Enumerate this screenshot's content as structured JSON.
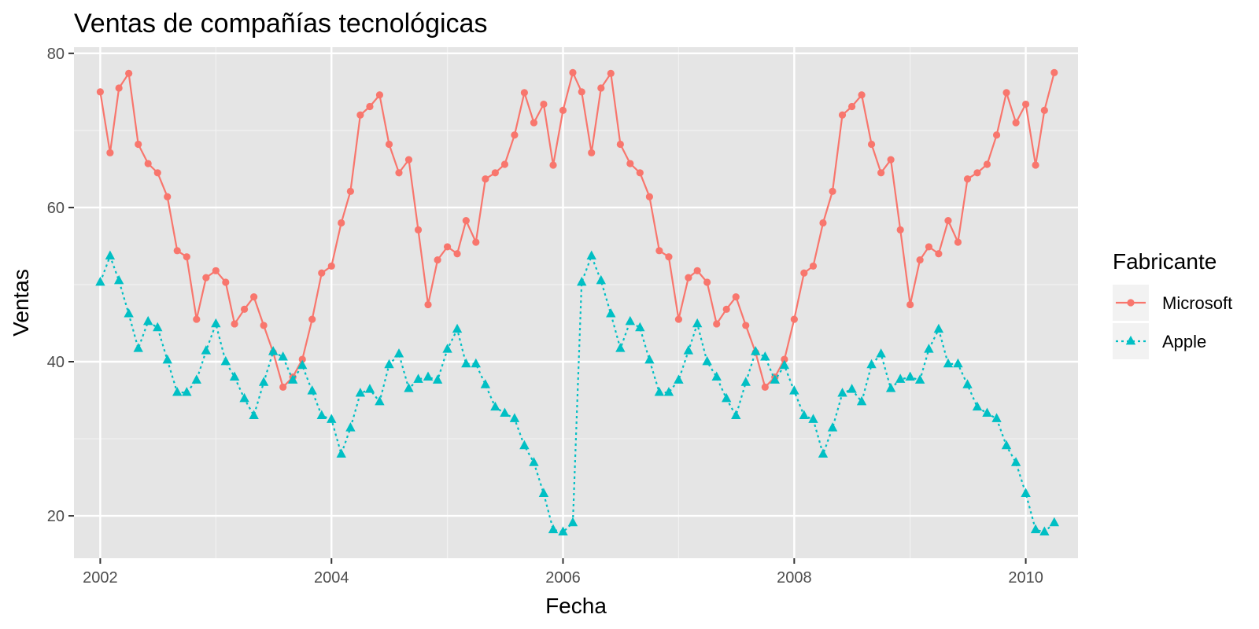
{
  "chart_data": {
    "type": "line",
    "title": "Ventas de compañías tecnológicas",
    "xlabel": "Fecha",
    "ylabel": "Ventas",
    "x_range": [
      "2001-10-10",
      "2010-06-15"
    ],
    "ylim": [
      14.5,
      80.8
    ],
    "x_ticks": [
      {
        "date": "2002-01-01",
        "label": "2002"
      },
      {
        "date": "2004-01-01",
        "label": "2004"
      },
      {
        "date": "2006-01-01",
        "label": "2006"
      },
      {
        "date": "2008-01-01",
        "label": "2008"
      },
      {
        "date": "2010-01-01",
        "label": "2010"
      }
    ],
    "x_minor_ticks": [
      "2003-01-01",
      "2005-01-01",
      "2007-01-01",
      "2009-01-01"
    ],
    "y_ticks": [
      20,
      40,
      60,
      80
    ],
    "y_minor_ticks": [
      30,
      50,
      70
    ],
    "grid": true,
    "background": "#e5e5e5",
    "legend": {
      "title": "Fabricante",
      "position": "right"
    },
    "start_month": "2002-01",
    "series": [
      {
        "name": "Microsoft",
        "color": "#f8766d",
        "line_style": "solid",
        "marker": "circle",
        "values": [
          75.0,
          67.1,
          75.5,
          77.4,
          68.2,
          65.7,
          64.5,
          61.4,
          54.4,
          53.6,
          45.5,
          50.9,
          51.8,
          50.3,
          44.9,
          46.8,
          48.4,
          44.7,
          41.2,
          36.7,
          38.0,
          40.3,
          45.5,
          51.5,
          52.4,
          58.0,
          62.1,
          72.0,
          73.1,
          74.6,
          68.2,
          64.5,
          66.2,
          57.1,
          47.4,
          53.2,
          54.9,
          54.0,
          58.3,
          55.5,
          63.7,
          64.5,
          65.6,
          69.4,
          74.9,
          71.0,
          73.4,
          65.5,
          72.6,
          77.5,
          75.0,
          67.1,
          75.5,
          77.4,
          68.2,
          65.7,
          64.5,
          61.4,
          54.4,
          53.6,
          45.5,
          50.9,
          51.8,
          50.3,
          44.9,
          46.8,
          48.4,
          44.7,
          41.2,
          36.7,
          38.0,
          40.3,
          45.5,
          51.5,
          52.4,
          58.0,
          62.1,
          72.0,
          73.1,
          74.6,
          68.2,
          64.5,
          66.2,
          57.1,
          47.4,
          53.2,
          54.9,
          54.0,
          58.3,
          55.5,
          63.7,
          64.5,
          65.6,
          69.4,
          74.9,
          71.0,
          73.4,
          65.5,
          72.6,
          77.5
        ]
      },
      {
        "name": "Apple",
        "color": "#00bfc4",
        "line_style": "dotted",
        "marker": "triangle",
        "values": [
          50.3,
          53.7,
          50.5,
          46.2,
          41.7,
          45.2,
          44.4,
          40.2,
          36.0,
          36.0,
          37.6,
          41.4,
          44.9,
          40.0,
          38.0,
          35.2,
          33.0,
          37.3,
          41.3,
          40.6,
          37.6,
          39.5,
          36.2,
          33.0,
          32.5,
          28.0,
          31.4,
          35.9,
          36.4,
          34.8,
          39.6,
          41.0,
          36.5,
          37.7,
          38.0,
          37.6,
          41.6,
          44.2,
          39.7,
          39.7,
          37.0,
          34.1,
          33.3,
          32.6,
          29.1,
          26.9,
          22.9,
          18.2,
          17.9,
          19.1,
          50.3,
          53.7,
          50.5,
          46.2,
          41.7,
          45.2,
          44.4,
          40.2,
          36.0,
          36.0,
          37.6,
          41.4,
          44.9,
          40.0,
          38.0,
          35.2,
          33.0,
          37.3,
          41.3,
          40.6,
          37.6,
          39.5,
          36.2,
          33.0,
          32.5,
          28.0,
          31.4,
          35.9,
          36.4,
          34.8,
          39.6,
          41.0,
          36.5,
          37.7,
          38.0,
          37.6,
          41.6,
          44.2,
          39.7,
          39.7,
          37.0,
          34.1,
          33.3,
          32.6,
          29.1,
          26.9,
          22.9,
          18.2,
          17.9,
          19.1
        ]
      }
    ]
  }
}
